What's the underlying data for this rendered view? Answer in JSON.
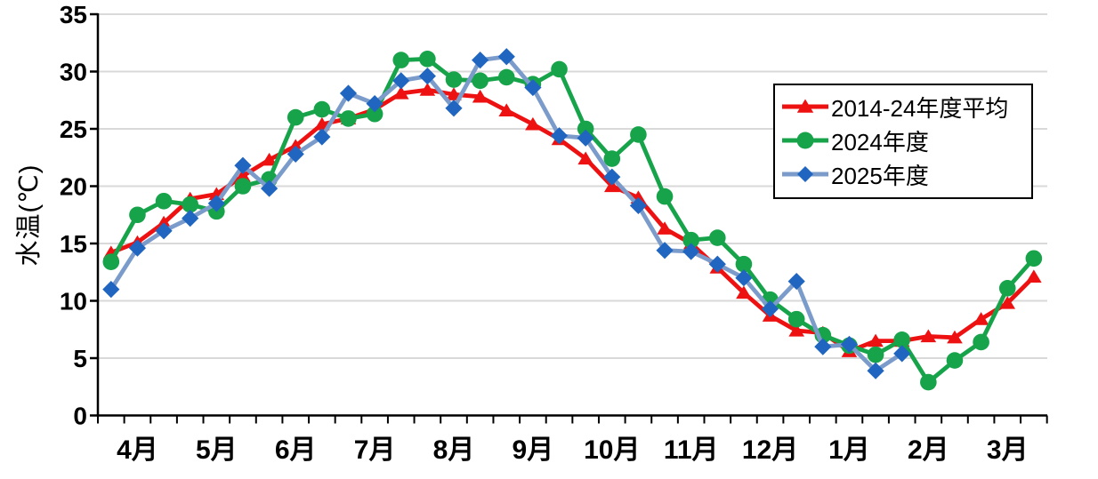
{
  "chart_data": {
    "type": "line",
    "title": "",
    "ylabel": "水温(℃)",
    "ylim": [
      0,
      35
    ],
    "y_ticks": [
      "0",
      "5",
      "10",
      "15",
      "20",
      "25",
      "30",
      "35"
    ],
    "x_months": [
      "4月",
      "5月",
      "6月",
      "7月",
      "8月",
      "9月",
      "10月",
      "11月",
      "12月",
      "1月",
      "2月",
      "3月"
    ],
    "points_per_month": 3,
    "grid": "horizontal",
    "legend_position": "upper-right-inside",
    "series": [
      {
        "id": "avg",
        "name": "2014-24年度平均",
        "marker": "triangle",
        "line_color": "#EE1111",
        "marker_color": "#EE1111",
        "values": [
          14.2,
          15.1,
          16.8,
          18.9,
          19.3,
          20.9,
          22.3,
          23.5,
          25.4,
          25.9,
          26.7,
          28.1,
          28.4,
          28.0,
          27.8,
          26.6,
          25.4,
          24.1,
          22.4,
          20.0,
          19.0,
          16.3,
          15.0,
          12.9,
          10.7,
          8.7,
          7.4,
          7.2,
          5.6,
          6.5,
          6.5,
          6.9,
          6.8,
          8.4,
          9.8,
          12.1
        ]
      },
      {
        "id": "fy2024",
        "name": "2024年度",
        "marker": "circle",
        "line_color": "#16A34A",
        "marker_color": "#16A34A",
        "values": [
          13.4,
          17.5,
          18.7,
          18.4,
          17.8,
          20.0,
          20.6,
          26.0,
          26.7,
          25.9,
          26.3,
          31.0,
          31.1,
          29.3,
          29.2,
          29.5,
          28.9,
          30.2,
          25.0,
          22.4,
          24.5,
          19.1,
          15.3,
          15.5,
          13.2,
          10.1,
          8.4,
          7.0,
          6.1,
          5.3,
          6.6,
          2.9,
          4.8,
          6.4,
          11.1,
          13.7
        ]
      },
      {
        "id": "fy2025",
        "name": "2025年度",
        "marker": "diamond",
        "line_color": "#7B9CCB",
        "marker_color": "#2066C0",
        "values": [
          11.0,
          14.6,
          16.1,
          17.2,
          18.5,
          21.8,
          19.8,
          22.8,
          24.3,
          28.1,
          27.2,
          29.2,
          29.6,
          26.8,
          31.0,
          31.3,
          28.6,
          24.4,
          24.2,
          20.8,
          18.3,
          14.4,
          14.3,
          13.2,
          12.0,
          9.3,
          11.7,
          6.0,
          6.2,
          3.9,
          5.4,
          null,
          null,
          null,
          null,
          null
        ]
      }
    ]
  },
  "style": {
    "grid_color": "#D9D9D9",
    "axis_color": "#000000",
    "text_color": "#000000"
  }
}
